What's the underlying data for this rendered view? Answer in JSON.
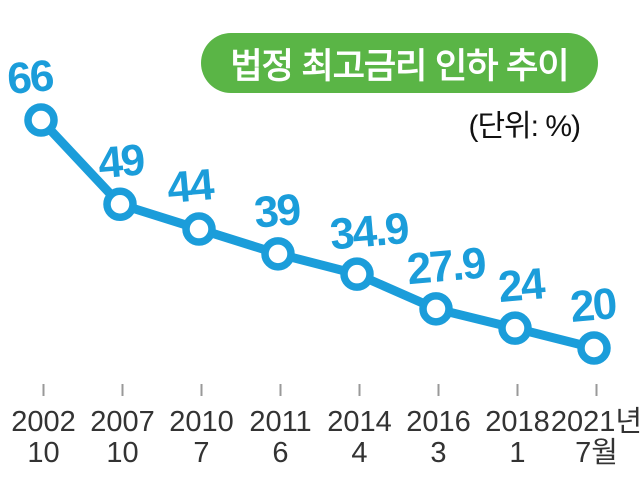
{
  "header": {
    "title": "법정 최고금리 인하 추이",
    "unit": "(단위: %)"
  },
  "colors": {
    "line": "#1b9dda",
    "point_fill": "#ffffff",
    "value_label": "#1b9dda",
    "title_bg": "#5ab546",
    "title_text": "#ffffff",
    "unit_text": "#111111",
    "axis_text": "#333333",
    "tick": "#999999",
    "background": "#ffffff"
  },
  "chart_data": {
    "type": "line",
    "title": "법정 최고금리 인하 추이",
    "unit": "(단위: %)",
    "xlabel": "",
    "ylabel": "",
    "categories": [
      [
        "2002",
        "10"
      ],
      [
        "2007",
        "10"
      ],
      [
        "2010",
        "7"
      ],
      [
        "2011",
        "6"
      ],
      [
        "2014",
        "4"
      ],
      [
        "2016",
        "3"
      ],
      [
        "2018",
        "1"
      ],
      [
        "2021년",
        "7월"
      ]
    ],
    "series": [
      {
        "name": "법정 최고금리 인하 추이",
        "values": [
          66,
          49,
          44,
          39,
          34.9,
          27.9,
          24,
          20
        ],
        "labels": [
          "66",
          "49",
          "44",
          "39",
          "34.9",
          "27.9",
          "24",
          "20"
        ]
      }
    ],
    "ylim": [
      20,
      66
    ],
    "grid": false,
    "legend": "none",
    "marker": "open-circle"
  }
}
